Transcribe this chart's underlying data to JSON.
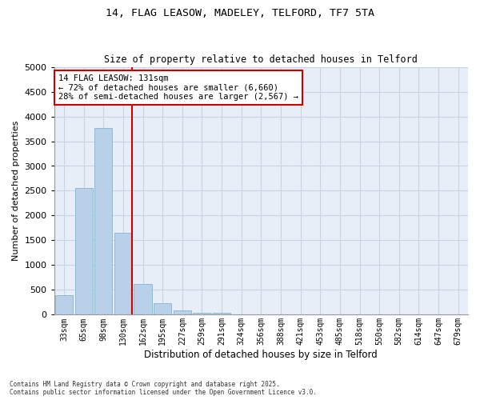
{
  "title_line1": "14, FLAG LEASOW, MADELEY, TELFORD, TF7 5TA",
  "title_line2": "Size of property relative to detached houses in Telford",
  "xlabel": "Distribution of detached houses by size in Telford",
  "ylabel": "Number of detached properties",
  "categories": [
    "33sqm",
    "65sqm",
    "98sqm",
    "130sqm",
    "162sqm",
    "195sqm",
    "227sqm",
    "259sqm",
    "291sqm",
    "324sqm",
    "356sqm",
    "388sqm",
    "421sqm",
    "453sqm",
    "485sqm",
    "518sqm",
    "550sqm",
    "582sqm",
    "614sqm",
    "647sqm",
    "679sqm"
  ],
  "values": [
    390,
    2550,
    3760,
    1650,
    620,
    240,
    95,
    45,
    45,
    0,
    0,
    0,
    0,
    0,
    0,
    0,
    0,
    0,
    0,
    0,
    0
  ],
  "bar_color": "#b8d0e8",
  "bar_edge_color": "#7aaac8",
  "vline_color": "#cc0000",
  "annotation_text": "14 FLAG LEASOW: 131sqm\n← 72% of detached houses are smaller (6,660)\n28% of semi-detached houses are larger (2,567) →",
  "annotation_box_color": "#cc0000",
  "ylim": [
    0,
    5000
  ],
  "yticks": [
    0,
    500,
    1000,
    1500,
    2000,
    2500,
    3000,
    3500,
    4000,
    4500,
    5000
  ],
  "grid_color": "#c8d4e4",
  "background_color": "#e8eef8",
  "footer_line1": "Contains HM Land Registry data © Crown copyright and database right 2025.",
  "footer_line2": "Contains public sector information licensed under the Open Government Licence v3.0."
}
